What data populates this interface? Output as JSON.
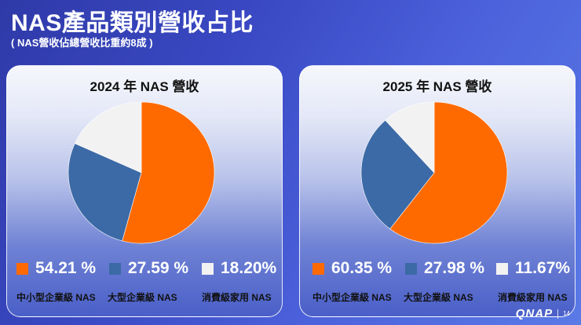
{
  "header": {
    "title": "NAS產品類別營收占比",
    "subtitle": "( NAS營收佔總營收比重約8成 )"
  },
  "colors": {
    "smb": "#ff6a00",
    "enterprise": "#3c6aa6",
    "consumer": "#f2f2f2"
  },
  "chart_data": [
    {
      "type": "pie",
      "title": "2024 年 NAS 營收",
      "categories": [
        "中小型企業級 NAS",
        "大型企業級 NAS",
        "消費級家用 NAS"
      ],
      "values": [
        54.21,
        27.59,
        18.2
      ],
      "value_labels": [
        "54.21 %",
        "27.59 %",
        "18.20%"
      ],
      "colors": [
        "#ff6a00",
        "#3c6aa6",
        "#f2f2f2"
      ],
      "legend": "bottom"
    },
    {
      "type": "pie",
      "title": "2025 年 NAS 營收",
      "categories": [
        "中小型企業級 NAS",
        "大型企業級 NAS",
        "消費級家用 NAS"
      ],
      "values": [
        60.35,
        27.98,
        11.67
      ],
      "value_labels": [
        "60.35 %",
        "27.98 %",
        "11.67%"
      ],
      "colors": [
        "#ff6a00",
        "#3c6aa6",
        "#f2f2f2"
      ],
      "legend": "bottom"
    }
  ],
  "footer": {
    "logo": "QNAP",
    "page": "14"
  }
}
